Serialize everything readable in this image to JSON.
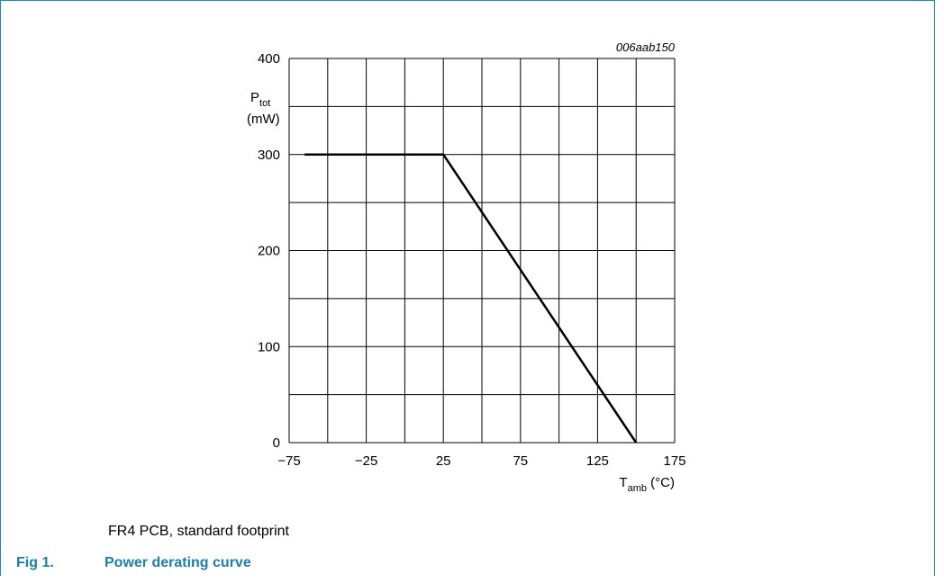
{
  "chart_data": {
    "type": "line",
    "figure_code": "006aab150",
    "ylabel_main": "P",
    "ylabel_sub": "tot",
    "yunit": "(mW)",
    "xlabel_main": "T",
    "xlabel_sub": "amb",
    "xunit": "(°C)",
    "xlim": [
      -75,
      175
    ],
    "ylim": [
      0,
      400
    ],
    "xticks": [
      -75,
      -25,
      25,
      75,
      125,
      175
    ],
    "xtick_labels": [
      "−75",
      "−25",
      "25",
      "75",
      "125",
      "175"
    ],
    "yticks": [
      0,
      100,
      200,
      300,
      400
    ],
    "grid": true,
    "series": [
      {
        "x": [
          -65,
          25,
          150
        ],
        "y": [
          300,
          300,
          0
        ]
      }
    ]
  },
  "note": "FR4 PCB, standard footprint",
  "caption": {
    "number": "Fig 1.",
    "title": "Power derating curve"
  }
}
